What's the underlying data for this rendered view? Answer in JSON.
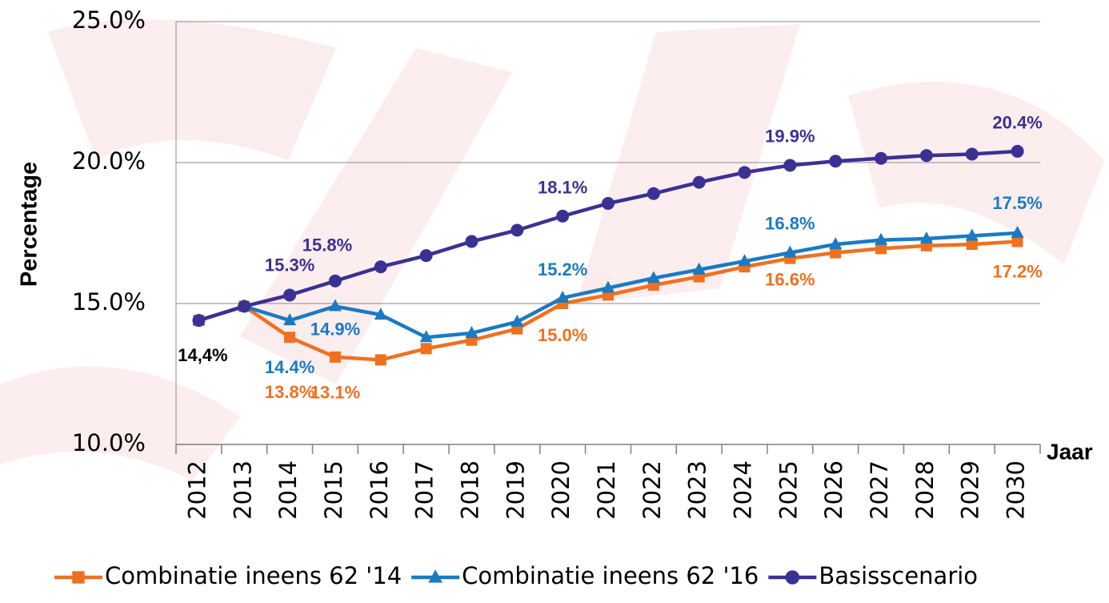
{
  "chart_data": {
    "type": "line",
    "y_label": "Percentage",
    "x_label": "Jaar",
    "categories": [
      "2012",
      "2013",
      "2014",
      "2015",
      "2016",
      "2017",
      "2018",
      "2019",
      "2020",
      "2021",
      "2022",
      "2023",
      "2024",
      "2025",
      "2026",
      "2027",
      "2028",
      "2029",
      "2030"
    ],
    "ylim": [
      10,
      25
    ],
    "yticks": [
      {
        "value": 10,
        "label": "10.0%"
      },
      {
        "value": 15,
        "label": "15.0%"
      },
      {
        "value": 20,
        "label": "20.0%"
      },
      {
        "value": 25,
        "label": "25.0%"
      }
    ],
    "grid": true,
    "legend": "bottom",
    "series": [
      {
        "name": "Combinatie ineens 62 '14",
        "color": "#f07020",
        "marker": "square",
        "values": [
          14.4,
          14.9,
          13.8,
          13.1,
          13.0,
          13.4,
          13.7,
          14.1,
          15.0,
          15.3,
          15.65,
          15.95,
          16.3,
          16.6,
          16.8,
          16.95,
          17.05,
          17.1,
          17.2
        ],
        "value_labels": [
          null,
          null,
          "13.8%",
          "13.1%",
          null,
          null,
          null,
          null,
          "15.0%",
          null,
          null,
          null,
          null,
          "16.6%",
          null,
          null,
          null,
          null,
          "17.2%"
        ]
      },
      {
        "name": "Combinatie ineens 62 '16",
        "color": "#1a7ac4",
        "marker": "triangle",
        "values": [
          14.4,
          14.9,
          14.4,
          14.9,
          14.6,
          13.8,
          13.95,
          14.35,
          15.2,
          15.55,
          15.9,
          16.2,
          16.5,
          16.8,
          17.1,
          17.25,
          17.3,
          17.4,
          17.5
        ],
        "value_labels": [
          null,
          null,
          "14.4%",
          "14.9%",
          null,
          null,
          null,
          null,
          "15.2%",
          null,
          null,
          null,
          null,
          "16.8%",
          null,
          null,
          null,
          null,
          "17.5%"
        ]
      },
      {
        "name": "Basisscenario",
        "color": "#3a3194",
        "marker": "circle",
        "values": [
          14.4,
          14.9,
          15.3,
          15.8,
          16.3,
          16.7,
          17.2,
          17.6,
          18.1,
          18.55,
          18.9,
          19.3,
          19.65,
          19.9,
          20.05,
          20.15,
          20.25,
          20.3,
          20.4
        ],
        "value_labels": [
          null,
          null,
          "15.3%",
          "15.8%",
          null,
          null,
          null,
          null,
          "18.1%",
          null,
          null,
          null,
          null,
          "19.9%",
          null,
          null,
          null,
          null,
          "20.4%"
        ]
      }
    ],
    "annotations": [
      {
        "text": "14,4%"
      }
    ]
  }
}
